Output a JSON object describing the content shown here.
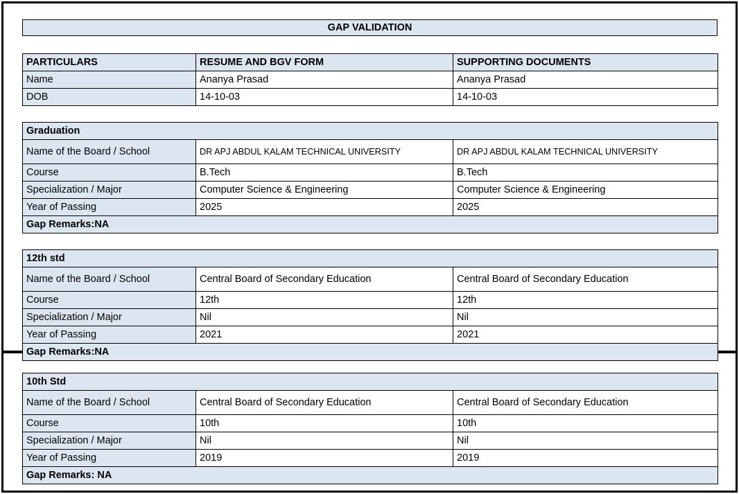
{
  "document": {
    "title": "GAP VALIDATION"
  },
  "colors": {
    "header_fill": "#dce6f1",
    "border": "#000000",
    "text": "#000000",
    "page_background": "#ffffff"
  },
  "particulars_table": {
    "headers": [
      "PARTICULARS",
      "RESUME AND BGV FORM",
      "SUPPORTING DOCUMENTS"
    ],
    "rows": [
      {
        "label": "Name",
        "resume": "Ananya Prasad",
        "supporting": "Ananya Prasad"
      },
      {
        "label": "DOB",
        "resume": "14-10-03",
        "supporting": "14-10-03"
      }
    ]
  },
  "sections": [
    {
      "title": "Graduation",
      "rows": [
        {
          "label": "Name of the Board / School",
          "resume": "DR APJ ABDUL KALAM TECHNICAL UNIVERSITY",
          "supporting": "DR APJ ABDUL KALAM TECHNICAL UNIVERSITY"
        },
        {
          "label": "Course",
          "resume": "B.Tech",
          "supporting": "B.Tech"
        },
        {
          "label": "Specialization / Major",
          "resume": "Computer Science & Engineering",
          "supporting": "Computer Science & Engineering"
        },
        {
          "label": "Year of Passing",
          "resume": "2025",
          "supporting": "2025"
        }
      ],
      "gap_remarks": "Gap Remarks:NA"
    },
    {
      "title": "12th std",
      "rows": [
        {
          "label": "Name of the Board / School",
          "resume": "Central Board of Secondary Education",
          "supporting": "Central Board of Secondary Education"
        },
        {
          "label": "Course",
          "resume": "12th",
          "supporting": "12th"
        },
        {
          "label": "Specialization / Major",
          "resume": "Nil",
          "supporting": "Nil"
        },
        {
          "label": "Year of Passing",
          "resume": "2021",
          "supporting": "2021"
        }
      ],
      "gap_remarks": "Gap Remarks:NA"
    },
    {
      "title": "10th Std",
      "rows": [
        {
          "label": "Name of the Board / School",
          "resume": "Central Board of Secondary Education",
          "supporting": "Central Board of Secondary Education"
        },
        {
          "label": "Course",
          "resume": "10th",
          "supporting": "10th"
        },
        {
          "label": "Specialization / Major",
          "resume": "Nil",
          "supporting": "Nil"
        },
        {
          "label": "Year of Passing",
          "resume": "2019",
          "supporting": "2019"
        }
      ],
      "gap_remarks": "Gap Remarks: NA"
    }
  ]
}
